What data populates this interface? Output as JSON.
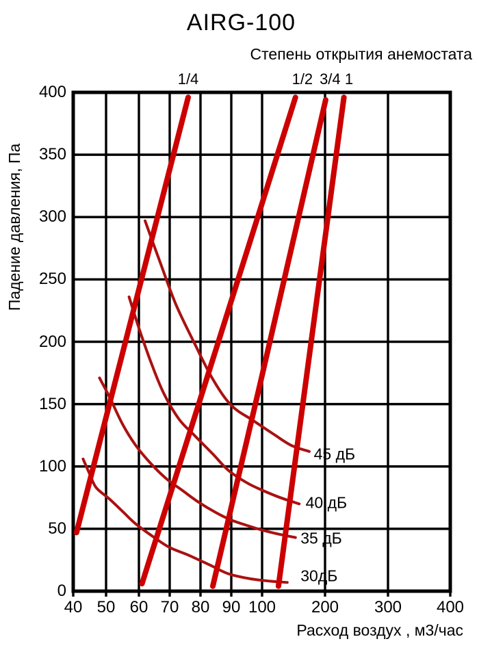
{
  "title": "AIRG-100",
  "subtitle": "Степень открытия анемостата",
  "chart_data": {
    "type": "line",
    "title": "AIRG-100",
    "subtitle": "Степень открытия анемостата",
    "xlabel": "Расход воздух , м3/час",
    "ylabel": "Падение давления, Па",
    "x_scale": "log-like",
    "xlim": [
      40,
      400
    ],
    "ylim": [
      0,
      400
    ],
    "grid": true,
    "x_ticks": [
      40,
      50,
      60,
      70,
      80,
      90,
      100,
      200,
      300,
      400
    ],
    "y_ticks": [
      400,
      350,
      300,
      250,
      200,
      150,
      100,
      50,
      0
    ],
    "colors": {
      "opening_line": "#cc0000",
      "noise_line": "#aa1111",
      "grid": "#000000",
      "text": "#000000"
    },
    "opening_series": [
      {
        "name": "1/4",
        "points": [
          [
            41,
            47
          ],
          [
            76,
            396
          ]
        ]
      },
      {
        "name": "1/2",
        "points": [
          [
            61,
            6
          ],
          [
            100,
            311
          ],
          [
            153,
            396
          ]
        ]
      },
      {
        "name": "3/4",
        "points": [
          [
            84,
            4
          ],
          [
            100,
            173
          ],
          [
            201,
            394
          ]
        ]
      },
      {
        "name": "1",
        "points": [
          [
            126,
            4
          ],
          [
            230,
            396
          ]
        ]
      }
    ],
    "opening_labels": [
      {
        "label": "1/4",
        "x": 76
      },
      {
        "label": "1/2",
        "x": 164
      },
      {
        "label": "3/4",
        "x": 208
      },
      {
        "label": "1",
        "x": 238
      }
    ],
    "noise_series": [
      {
        "name": "45 дБ",
        "label_at": [
          180,
          110
        ],
        "points": [
          [
            62,
            297
          ],
          [
            67,
            263
          ],
          [
            72,
            230
          ],
          [
            78,
            199
          ],
          [
            84,
            170
          ],
          [
            90,
            149
          ],
          [
            97,
            137
          ],
          [
            118,
            126
          ],
          [
            146,
            117
          ],
          [
            175,
            112
          ]
        ]
      },
      {
        "name": "40 дБ",
        "label_at": [
          167,
          71
        ],
        "points": [
          [
            57,
            236
          ],
          [
            60,
            211
          ],
          [
            64,
            183
          ],
          [
            68,
            159
          ],
          [
            73,
            138
          ],
          [
            78,
            125
          ],
          [
            84,
            110
          ],
          [
            89,
            97
          ],
          [
            95,
            87
          ],
          [
            100,
            81
          ],
          [
            129,
            75
          ],
          [
            159,
            70
          ]
        ]
      },
      {
        "name": "35 дБ",
        "label_at": [
          159,
          42
        ],
        "points": [
          [
            48,
            171
          ],
          [
            51,
            156
          ],
          [
            55,
            134
          ],
          [
            59,
            117
          ],
          [
            64,
            102
          ],
          [
            69,
            90
          ],
          [
            74,
            81
          ],
          [
            79,
            72
          ],
          [
            85,
            63
          ],
          [
            90,
            57
          ],
          [
            96,
            52
          ],
          [
            100,
            49
          ],
          [
            124,
            46
          ],
          [
            153,
            43
          ]
        ]
      },
      {
        "name": "30дБ",
        "label_at": [
          159,
          12
        ],
        "points": [
          [
            43,
            106
          ],
          [
            45,
            94
          ],
          [
            47,
            83
          ],
          [
            51,
            74
          ],
          [
            55,
            64
          ],
          [
            59,
            54
          ],
          [
            65,
            43
          ],
          [
            70,
            35
          ],
          [
            76,
            29
          ],
          [
            83,
            21
          ],
          [
            89,
            14
          ],
          [
            96,
            10
          ],
          [
            113,
            8
          ],
          [
            140,
            7
          ]
        ]
      }
    ]
  }
}
